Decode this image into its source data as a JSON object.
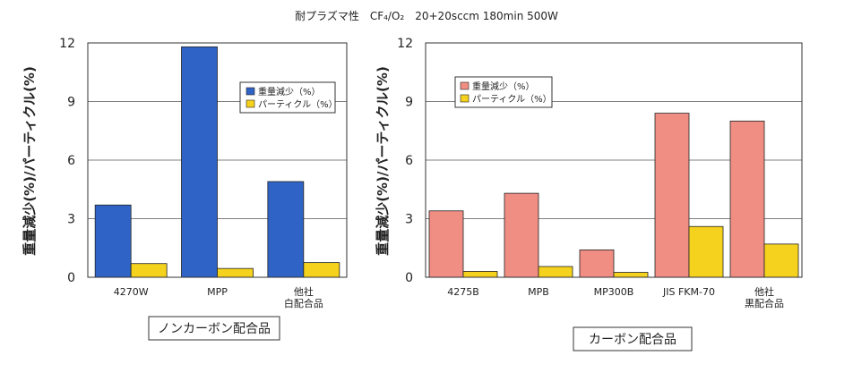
{
  "title": "耐プラズマ性　CF₄/O₂　20+20sccm 180min 500W",
  "ylabel": "重量減少(%)/パーティクル(%)",
  "colors": {
    "particle": "#f5d21e",
    "left_weight": "#2f63c6",
    "right_weight": "#f08e84",
    "grid": "#808080",
    "frame": "#333333"
  },
  "chart_data": [
    {
      "type": "bar",
      "ylim": [
        0,
        12
      ],
      "yticks": [
        0,
        3,
        6,
        9,
        12
      ],
      "grid": true,
      "legend_position": "top-right",
      "categories": [
        [
          "4270W"
        ],
        [
          "MPP"
        ],
        [
          "他社",
          "白配合品"
        ]
      ],
      "series": [
        {
          "name": "重量減少（%）",
          "values": [
            3.7,
            11.8,
            4.9
          ]
        },
        {
          "name": "パーティクル（%）",
          "values": [
            0.7,
            0.45,
            0.75
          ]
        }
      ],
      "caption": "ノンカーボン配合品"
    },
    {
      "type": "bar",
      "ylim": [
        0,
        12
      ],
      "yticks": [
        0,
        3,
        6,
        9,
        12
      ],
      "grid": true,
      "legend_position": "top-left",
      "categories": [
        [
          "4275B"
        ],
        [
          "MPB"
        ],
        [
          "MP300B"
        ],
        [
          "JIS FKM-70"
        ],
        [
          "他社",
          "黒配合品"
        ]
      ],
      "series": [
        {
          "name": "重量減少（%）",
          "values": [
            3.4,
            4.3,
            1.4,
            8.4,
            8.0
          ]
        },
        {
          "name": "パーティクル（%）",
          "values": [
            0.3,
            0.55,
            0.25,
            2.6,
            1.7
          ]
        }
      ],
      "caption": "カーボン配合品"
    }
  ]
}
